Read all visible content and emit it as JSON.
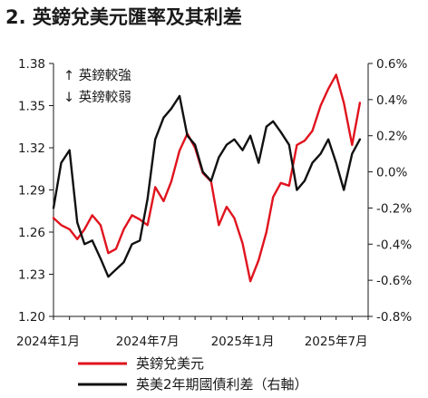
{
  "chart_data": {
    "type": "line",
    "title": "2. 英鎊兌美元匯率及其利差",
    "annotations": [
      "↑ 英鎊較強",
      "↓ 英鎊較弱"
    ],
    "x_ticks": [
      "2024年1月",
      "2024年7月",
      "2025年1月",
      "2025年7月"
    ],
    "x_range": [
      "2024-01",
      "2025-09"
    ],
    "y_left": {
      "ticks": [
        "1.38",
        "1.35",
        "1.32",
        "1.29",
        "1.26",
        "1.23",
        "1.20"
      ],
      "ylim": [
        1.2,
        1.38
      ]
    },
    "y_right": {
      "ticks": [
        "0.6%",
        "0.4%",
        "0.2%",
        "0.0%",
        "-0.2%",
        "-0.4%",
        "-0.6%",
        "-0.8%"
      ],
      "ylim": [
        -0.8,
        0.6
      ]
    },
    "grid": false,
    "legend_position": "bottom",
    "series": [
      {
        "name": "英鎊兌美元",
        "axis": "left",
        "color": "#e0141e",
        "x": [
          "2024-01-01",
          "2024-01-16",
          "2024-02-01",
          "2024-02-16",
          "2024-03-01",
          "2024-03-16",
          "2024-04-01",
          "2024-04-16",
          "2024-05-01",
          "2024-05-16",
          "2024-06-01",
          "2024-06-16",
          "2024-07-01",
          "2024-07-16",
          "2024-08-01",
          "2024-08-16",
          "2024-09-01",
          "2024-09-16",
          "2024-10-01",
          "2024-10-16",
          "2024-11-01",
          "2024-11-16",
          "2024-12-01",
          "2024-12-16",
          "2025-01-01",
          "2025-01-16",
          "2025-02-01",
          "2025-02-16",
          "2025-03-01",
          "2025-03-16",
          "2025-04-01",
          "2025-04-16",
          "2025-05-01",
          "2025-05-16",
          "2025-06-01",
          "2025-06-16",
          "2025-07-01",
          "2025-07-16",
          "2025-08-01",
          "2025-08-16"
        ],
        "y": [
          1.27,
          1.265,
          1.262,
          1.255,
          1.262,
          1.272,
          1.265,
          1.245,
          1.248,
          1.262,
          1.272,
          1.269,
          1.265,
          1.292,
          1.282,
          1.296,
          1.318,
          1.33,
          1.32,
          1.302,
          1.296,
          1.265,
          1.278,
          1.27,
          1.252,
          1.225,
          1.24,
          1.26,
          1.285,
          1.295,
          1.293,
          1.322,
          1.325,
          1.332,
          1.35,
          1.362,
          1.372,
          1.352,
          1.322,
          1.352
        ]
      },
      {
        "name": "英美2年期國債利差（右軸）",
        "axis": "right",
        "color": "#111111",
        "x": [
          "2024-01-01",
          "2024-01-16",
          "2024-02-01",
          "2024-02-16",
          "2024-03-01",
          "2024-03-16",
          "2024-04-01",
          "2024-04-16",
          "2024-05-01",
          "2024-05-16",
          "2024-06-01",
          "2024-06-16",
          "2024-07-01",
          "2024-07-16",
          "2024-08-01",
          "2024-08-16",
          "2024-09-01",
          "2024-09-16",
          "2024-10-01",
          "2024-10-16",
          "2024-11-01",
          "2024-11-16",
          "2024-12-01",
          "2024-12-16",
          "2025-01-01",
          "2025-01-16",
          "2025-02-01",
          "2025-02-16",
          "2025-03-01",
          "2025-03-16",
          "2025-04-01",
          "2025-04-16",
          "2025-05-01",
          "2025-05-16",
          "2025-06-01",
          "2025-06-16",
          "2025-07-01",
          "2025-07-16",
          "2025-08-01",
          "2025-08-16"
        ],
        "y": [
          -0.2,
          0.05,
          0.12,
          -0.28,
          -0.4,
          -0.38,
          -0.48,
          -0.58,
          -0.54,
          -0.5,
          -0.4,
          -0.38,
          -0.15,
          0.18,
          0.3,
          0.35,
          0.42,
          0.2,
          0.15,
          0.0,
          -0.05,
          0.08,
          0.15,
          0.18,
          0.12,
          0.2,
          0.05,
          0.25,
          0.28,
          0.22,
          0.15,
          -0.1,
          -0.05,
          0.05,
          0.1,
          0.18,
          0.05,
          -0.1,
          0.1,
          0.18
        ]
      }
    ]
  }
}
